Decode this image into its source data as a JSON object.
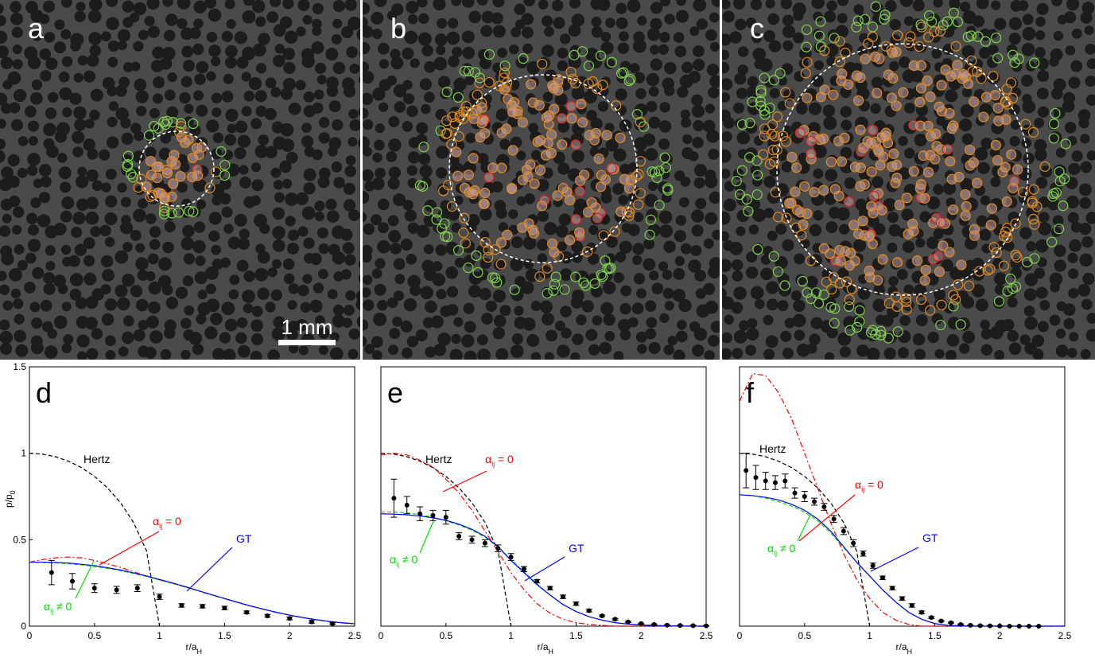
{
  "image_panels": [
    {
      "label": "a"
    },
    {
      "label": "b"
    },
    {
      "label": "c"
    }
  ],
  "scale_bar": "1 mm",
  "chart_data": [
    {
      "type": "line",
      "panel": "d",
      "ylabel": {
        "text": "p/p",
        "sub": "0"
      },
      "xlabel": {
        "text": "r/a",
        "sub": "H"
      },
      "xlim": [
        0,
        2.5
      ],
      "ylim": [
        0,
        1.5
      ],
      "xticks": [
        0,
        0.5,
        1,
        1.5,
        2,
        2.5
      ],
      "yticks": [
        0,
        0.5,
        1,
        1.5
      ],
      "annotations": [
        {
          "text": "Hertz",
          "color": "#000000"
        },
        {
          "text": "α",
          "sub": "ij",
          "tail": " = 0",
          "color": "#ff0000"
        },
        {
          "text": "GT",
          "color": "#0000ff"
        },
        {
          "text": "α",
          "sub": "ij",
          "tail": " ≠ 0",
          "color": "#00dd00"
        }
      ],
      "series": [
        {
          "kind": "line",
          "style": "dashed",
          "color": "#000000",
          "x": [
            0,
            0.1,
            0.2,
            0.3,
            0.4,
            0.5,
            0.6,
            0.7,
            0.8,
            0.9,
            1
          ],
          "values": [
            1,
            0.995,
            0.98,
            0.954,
            0.917,
            0.866,
            0.8,
            0.714,
            0.6,
            0.436,
            0
          ]
        },
        {
          "kind": "line",
          "style": "dashdot",
          "color": "#ff0000",
          "x": [
            0,
            0.1,
            0.2,
            0.3,
            0.4,
            0.5,
            0.6,
            0.7,
            0.8,
            0.9,
            1,
            1.1,
            1.2,
            1.3,
            1.4,
            1.5,
            1.6,
            1.7,
            1.8,
            1.9,
            2,
            2.1,
            2.2,
            2.3,
            2.4,
            2.5
          ],
          "values": [
            0.37,
            0.385,
            0.395,
            0.4,
            0.395,
            0.38,
            0.36,
            0.34,
            0.315,
            0.29,
            0.268,
            0.248,
            0.226,
            0.204,
            0.181,
            0.159,
            0.137,
            0.116,
            0.097,
            0.079,
            0.063,
            0.049,
            0.037,
            0.027,
            0.019,
            0.013
          ]
        },
        {
          "kind": "line",
          "style": "dashed",
          "color": "#00dd00",
          "x": [
            0,
            0.1,
            0.2,
            0.3,
            0.4,
            0.5,
            0.6,
            0.7,
            0.8,
            0.9,
            1,
            1.1,
            1.2,
            1.3,
            1.4,
            1.5,
            1.6,
            1.7,
            1.8,
            1.9,
            2,
            2.1,
            2.2,
            2.3,
            2.4,
            2.5
          ],
          "values": [
            0.37,
            0.369,
            0.366,
            0.361,
            0.354,
            0.345,
            0.334,
            0.321,
            0.305,
            0.287,
            0.267,
            0.247,
            0.226,
            0.204,
            0.181,
            0.159,
            0.137,
            0.116,
            0.097,
            0.079,
            0.063,
            0.049,
            0.037,
            0.027,
            0.019,
            0.013
          ]
        },
        {
          "kind": "line",
          "style": "solid",
          "color": "#0000ff",
          "x": [
            0,
            0.1,
            0.2,
            0.3,
            0.4,
            0.5,
            0.6,
            0.7,
            0.8,
            0.9,
            1,
            1.1,
            1.2,
            1.3,
            1.4,
            1.5,
            1.6,
            1.7,
            1.8,
            1.9,
            2,
            2.1,
            2.2,
            2.3,
            2.4,
            2.5
          ],
          "values": [
            0.37,
            0.37,
            0.368,
            0.365,
            0.358,
            0.35,
            0.338,
            0.325,
            0.308,
            0.29,
            0.27,
            0.25,
            0.228,
            0.205,
            0.182,
            0.16,
            0.138,
            0.117,
            0.098,
            0.08,
            0.064,
            0.05,
            0.038,
            0.028,
            0.02,
            0.014
          ]
        },
        {
          "kind": "errorbar",
          "color": "#000000",
          "x": [
            0.17,
            0.33,
            0.5,
            0.67,
            0.83,
            1,
            1.17,
            1.33,
            1.5,
            1.67,
            1.83,
            2,
            2.17,
            2.33
          ],
          "values": [
            0.31,
            0.26,
            0.22,
            0.21,
            0.22,
            0.17,
            0.12,
            0.115,
            0.105,
            0.08,
            0.06,
            0.045,
            0.025,
            0.015
          ],
          "errors": [
            0.07,
            0.045,
            0.025,
            0.02,
            0.02,
            0.015,
            0.01,
            0.01,
            0.01,
            0.008,
            0.008,
            0.008,
            0.008,
            0.005
          ]
        }
      ]
    },
    {
      "type": "line",
      "panel": "e",
      "xlabel": {
        "text": "r/a",
        "sub": "H"
      },
      "xlim": [
        0,
        2.5
      ],
      "ylim": [
        0,
        1.5
      ],
      "xticks": [
        0,
        0.5,
        1,
        1.5,
        2,
        2.5
      ],
      "annotations": [
        {
          "text": "Hertz",
          "color": "#000000"
        },
        {
          "text": "α",
          "sub": "ij",
          "tail": " = 0",
          "color": "#ff0000"
        },
        {
          "text": "GT",
          "color": "#0000ff"
        },
        {
          "text": "α",
          "sub": "ij",
          "tail": " ≠ 0",
          "color": "#00dd00"
        }
      ],
      "series": [
        {
          "kind": "line",
          "style": "dashed",
          "color": "#000000",
          "x": [
            0,
            0.1,
            0.2,
            0.3,
            0.4,
            0.5,
            0.6,
            0.7,
            0.8,
            0.9,
            1
          ],
          "values": [
            1,
            0.995,
            0.98,
            0.954,
            0.917,
            0.866,
            0.8,
            0.714,
            0.6,
            0.436,
            0
          ]
        },
        {
          "kind": "line",
          "style": "dashdot",
          "color": "#ff0000",
          "x": [
            0,
            0.1,
            0.2,
            0.3,
            0.4,
            0.5,
            0.6,
            0.7,
            0.8,
            0.9,
            1,
            1.1,
            1.2,
            1.3,
            1.4,
            1.5,
            1.6,
            1.7,
            1.8,
            1.9,
            2,
            2.1,
            2.2,
            2.3,
            2.4,
            2.5
          ],
          "values": [
            0.99,
            1,
            0.99,
            0.96,
            0.92,
            0.85,
            0.77,
            0.67,
            0.55,
            0.43,
            0.31,
            0.21,
            0.13,
            0.075,
            0.04,
            0.02,
            0.01,
            0.005,
            0,
            0,
            0,
            0,
            0,
            0,
            0,
            0
          ]
        },
        {
          "kind": "line",
          "style": "dashed",
          "color": "#00dd00",
          "x": [
            0,
            0.1,
            0.2,
            0.3,
            0.4,
            0.5,
            0.6,
            0.7,
            0.8,
            0.9,
            1,
            1.1,
            1.2,
            1.3,
            1.4,
            1.5,
            1.6,
            1.7,
            1.8,
            1.9,
            2,
            2.1,
            2.2,
            2.3,
            2.4,
            2.5
          ],
          "values": [
            0.66,
            0.66,
            0.655,
            0.645,
            0.63,
            0.61,
            0.585,
            0.555,
            0.515,
            0.46,
            0.385,
            0.315,
            0.245,
            0.18,
            0.125,
            0.085,
            0.055,
            0.035,
            0.02,
            0.012,
            0.007,
            0.004,
            0.002,
            0.001,
            0,
            0
          ]
        },
        {
          "kind": "line",
          "style": "solid",
          "color": "#0000ff",
          "x": [
            0,
            0.1,
            0.2,
            0.3,
            0.4,
            0.5,
            0.6,
            0.7,
            0.8,
            0.9,
            1,
            1.1,
            1.2,
            1.3,
            1.4,
            1.5,
            1.6,
            1.7,
            1.8,
            1.9,
            2,
            2.1,
            2.2,
            2.3,
            2.4,
            2.5
          ],
          "values": [
            0.65,
            0.648,
            0.644,
            0.637,
            0.627,
            0.612,
            0.59,
            0.56,
            0.52,
            0.46,
            0.38,
            0.31,
            0.24,
            0.18,
            0.125,
            0.085,
            0.055,
            0.035,
            0.02,
            0.012,
            0.007,
            0.004,
            0.002,
            0.001,
            0,
            0
          ]
        },
        {
          "kind": "errorbar",
          "color": "#000000",
          "x": [
            0.1,
            0.2,
            0.3,
            0.4,
            0.5,
            0.6,
            0.7,
            0.8,
            0.9,
            1,
            1.1,
            1.2,
            1.3,
            1.4,
            1.5,
            1.6,
            1.7,
            1.8,
            1.9,
            2,
            2.1,
            2.2,
            2.3,
            2.4,
            2.5
          ],
          "values": [
            0.74,
            0.7,
            0.65,
            0.64,
            0.63,
            0.52,
            0.5,
            0.48,
            0.45,
            0.4,
            0.33,
            0.26,
            0.22,
            0.17,
            0.13,
            0.09,
            0.06,
            0.04,
            0.025,
            0.015,
            0.01,
            0.006,
            0.004,
            0.003,
            0.002
          ],
          "errors": [
            0.11,
            0.05,
            0.04,
            0.03,
            0.04,
            0.02,
            0.02,
            0.02,
            0.02,
            0.02,
            0.015,
            0.01,
            0.01,
            0.01,
            0.01,
            0.008,
            0.005,
            0.005,
            0.004,
            0.003,
            0.003,
            0.002,
            0.002,
            0.002,
            0.002
          ]
        }
      ]
    },
    {
      "type": "line",
      "panel": "f",
      "xlabel": {
        "text": "r/a",
        "sub": "H"
      },
      "xlim": [
        0,
        2.5
      ],
      "ylim": [
        0,
        1.5
      ],
      "xticks": [
        0,
        0.5,
        1,
        1.5,
        2,
        2.5
      ],
      "annotations": [
        {
          "text": "Hertz",
          "color": "#000000"
        },
        {
          "text": "α",
          "sub": "ij",
          "tail": " = 0",
          "color": "#ff0000"
        },
        {
          "text": "GT",
          "color": "#0000ff"
        },
        {
          "text": "α",
          "sub": "ij",
          "tail": " ≠ 0",
          "color": "#00dd00"
        }
      ],
      "series": [
        {
          "kind": "line",
          "style": "dashed",
          "color": "#000000",
          "x": [
            0,
            0.1,
            0.2,
            0.3,
            0.4,
            0.5,
            0.6,
            0.7,
            0.8,
            0.9,
            1
          ],
          "values": [
            1,
            0.995,
            0.98,
            0.954,
            0.917,
            0.866,
            0.8,
            0.714,
            0.6,
            0.436,
            0
          ]
        },
        {
          "kind": "line",
          "style": "dashdot",
          "color": "#ff0000",
          "x": [
            0,
            0.1,
            0.2,
            0.3,
            0.4,
            0.5,
            0.6,
            0.7,
            0.8,
            0.9,
            1,
            1.1,
            1.2,
            1.3,
            1.4,
            1.5,
            1.6,
            1.7,
            1.8,
            1.9,
            2,
            2.1,
            2.2,
            2.3,
            2.4,
            2.5
          ],
          "values": [
            1.3,
            1.46,
            1.45,
            1.35,
            1.2,
            1,
            0.8,
            0.6,
            0.42,
            0.27,
            0.16,
            0.08,
            0.035,
            0.01,
            0,
            0,
            0,
            0,
            0,
            0,
            0,
            0,
            0,
            0,
            0,
            0
          ]
        },
        {
          "kind": "line",
          "style": "dashed",
          "color": "#00dd00",
          "x": [
            0,
            0.1,
            0.2,
            0.3,
            0.4,
            0.5,
            0.6,
            0.7,
            0.8,
            0.9,
            1,
            1.1,
            1.2,
            1.3,
            1.4,
            1.5,
            1.6,
            1.7,
            1.8,
            1.9,
            2,
            2.1,
            2.2,
            2.3,
            2.4,
            2.5
          ],
          "values": [
            0.76,
            0.755,
            0.74,
            0.72,
            0.695,
            0.66,
            0.61,
            0.54,
            0.455,
            0.37,
            0.29,
            0.21,
            0.14,
            0.08,
            0.04,
            0.015,
            0.005,
            0.002,
            0,
            0,
            0,
            0,
            0,
            0,
            0,
            0
          ]
        },
        {
          "kind": "line",
          "style": "solid",
          "color": "#0000ff",
          "x": [
            0,
            0.1,
            0.2,
            0.3,
            0.4,
            0.5,
            0.6,
            0.7,
            0.8,
            0.9,
            1,
            1.1,
            1.2,
            1.3,
            1.4,
            1.5,
            1.6,
            1.7,
            1.8,
            1.9,
            2,
            2.1,
            2.2,
            2.3,
            2.4,
            2.5
          ],
          "values": [
            0.76,
            0.755,
            0.745,
            0.73,
            0.705,
            0.67,
            0.62,
            0.55,
            0.46,
            0.37,
            0.29,
            0.21,
            0.14,
            0.08,
            0.04,
            0.015,
            0.005,
            0.002,
            0,
            0,
            0,
            0,
            0,
            0,
            0,
            0
          ]
        },
        {
          "kind": "errorbar",
          "color": "#000000",
          "x": [
            0.05,
            0.125,
            0.2,
            0.275,
            0.35,
            0.425,
            0.5,
            0.575,
            0.65,
            0.725,
            0.8,
            0.875,
            0.95,
            1.025,
            1.1,
            1.175,
            1.25,
            1.325,
            1.4,
            1.475,
            1.55,
            1.625,
            1.7,
            1.775,
            1.85,
            1.925,
            2,
            2.075,
            2.15,
            2.225,
            2.3
          ],
          "values": [
            0.9,
            0.86,
            0.84,
            0.83,
            0.84,
            0.77,
            0.75,
            0.72,
            0.69,
            0.62,
            0.55,
            0.48,
            0.42,
            0.35,
            0.28,
            0.22,
            0.16,
            0.12,
            0.08,
            0.05,
            0.03,
            0.02,
            0.01,
            0.005,
            0.003,
            0.002,
            0.001,
            0,
            0,
            0,
            0
          ],
          "errors": [
            0.1,
            0.07,
            0.05,
            0.04,
            0.04,
            0.03,
            0.03,
            0.02,
            0.02,
            0.02,
            0.02,
            0.02,
            0.015,
            0.015,
            0.01,
            0.01,
            0.01,
            0.01,
            0.008,
            0.005,
            0.005,
            0.003,
            0.003,
            0.002,
            0.002,
            0.002,
            0.001,
            0.001,
            0.001,
            0.001,
            0.001
          ]
        }
      ]
    }
  ]
}
